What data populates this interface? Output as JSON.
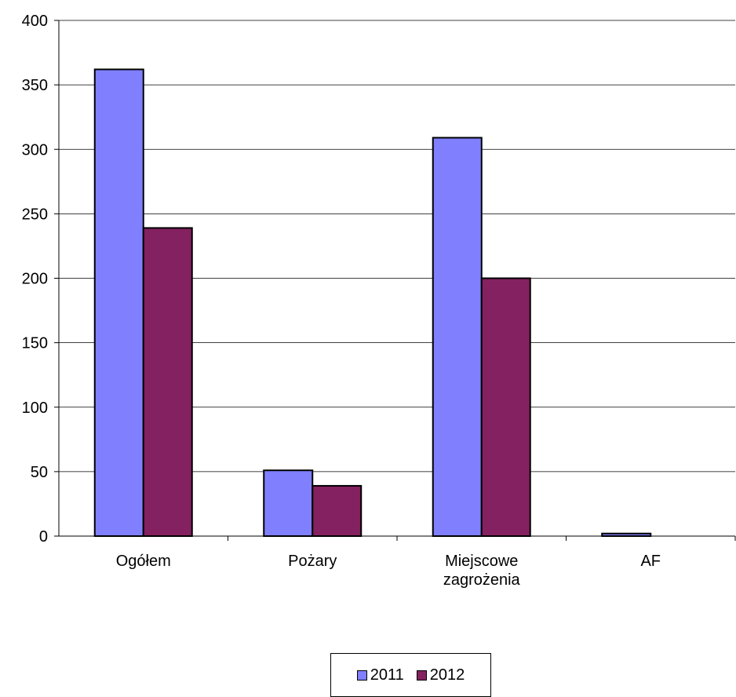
{
  "chart_data": {
    "type": "bar",
    "categories": [
      "Ogółem",
      "Pożary",
      "Miejscowe zagrożenia",
      "AF"
    ],
    "category_lines": [
      [
        "Ogółem"
      ],
      [
        "Pożary"
      ],
      [
        "Miejscowe",
        "zagrożenia"
      ],
      [
        "AF"
      ]
    ],
    "series": [
      {
        "name": "2011",
        "values": [
          362,
          51,
          309,
          2
        ],
        "color": "#8080ff"
      },
      {
        "name": "2012",
        "values": [
          239,
          39,
          200,
          0
        ],
        "color": "#842160"
      }
    ],
    "yticks": [
      "0",
      "50",
      "100",
      "150",
      "200",
      "250",
      "300",
      "350",
      "400"
    ],
    "ylim": [
      0,
      400
    ],
    "grid": true,
    "legend_position": "bottom"
  }
}
